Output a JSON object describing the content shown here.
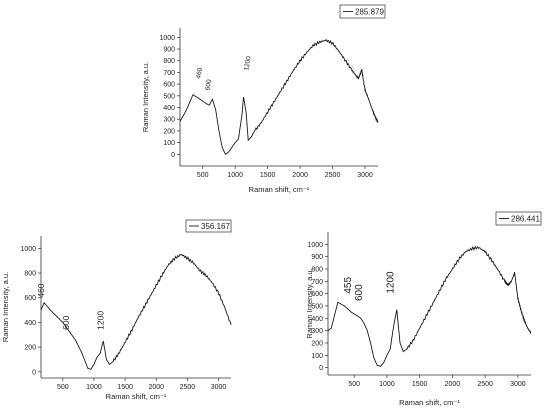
{
  "colors": {
    "line": "#1a1a1a",
    "axis": "#333333",
    "background": "#ffffff"
  },
  "chart_data": [
    {
      "type": "line",
      "xlabel": "Raman shift, cm⁻¹",
      "ylabel": "Raman Intensity, a.u.",
      "xlim": [
        150,
        3200
      ],
      "ylim": [
        -100,
        1080
      ],
      "xticks": [
        500,
        1000,
        1500,
        2000,
        2500,
        3000
      ],
      "yticks": [
        0,
        100,
        200,
        300,
        400,
        500,
        600,
        700,
        800,
        900,
        1000
      ],
      "legend": "285.879",
      "legend_position": "top-right",
      "grid": false,
      "annotations": [
        {
          "text": "460",
          "x": 460,
          "y": 560
        },
        {
          "text": "600",
          "x": 600,
          "y": 460
        },
        {
          "text": "1200",
          "x": 1200,
          "y": 560
        }
      ],
      "x": [
        150,
        250,
        350,
        460,
        550,
        600,
        650,
        700,
        750,
        800,
        850,
        900,
        950,
        1000,
        1050,
        1100,
        1130,
        1170,
        1200,
        1250,
        1300,
        1400,
        1500,
        1600,
        1700,
        1800,
        1900,
        2000,
        2100,
        2200,
        2300,
        2400,
        2500,
        2600,
        2700,
        2800,
        2850,
        2900,
        2950,
        3000,
        3050,
        3100,
        3150,
        3200
      ],
      "y": [
        280,
        380,
        510,
        470,
        435,
        420,
        470,
        380,
        200,
        60,
        0,
        20,
        60,
        100,
        130,
        320,
        490,
        350,
        120,
        150,
        200,
        270,
        360,
        450,
        540,
        630,
        720,
        800,
        870,
        930,
        960,
        975,
        950,
        880,
        800,
        720,
        680,
        650,
        720,
        550,
        480,
        400,
        330,
        270
      ]
    },
    {
      "type": "line",
      "xlabel": "Raman shift, cm⁻¹",
      "ylabel": "Raman Intensity, a.u.",
      "xlim": [
        150,
        3200
      ],
      "ylim": [
        -50,
        1100
      ],
      "xticks": [
        500,
        1000,
        1500,
        2000,
        2500,
        3000
      ],
      "yticks": [
        0,
        200,
        400,
        600,
        800,
        1000
      ],
      "legend": "356.167",
      "legend_position": "top-right",
      "grid": false,
      "annotations": [
        {
          "text": "460",
          "x": 200,
          "y": 600
        },
        {
          "text": "600",
          "x": 600,
          "y": 340
        },
        {
          "text": "1200",
          "x": 1150,
          "y": 340
        }
      ],
      "x": [
        150,
        200,
        300,
        400,
        500,
        600,
        700,
        800,
        900,
        950,
        1000,
        1050,
        1100,
        1150,
        1200,
        1250,
        1300,
        1400,
        1500,
        1600,
        1700,
        1800,
        1900,
        2000,
        2100,
        2200,
        2300,
        2400,
        2500,
        2600,
        2700,
        2800,
        2900,
        3000,
        3100,
        3200
      ],
      "y": [
        500,
        560,
        500,
        450,
        400,
        330,
        260,
        160,
        30,
        20,
        60,
        120,
        150,
        250,
        100,
        60,
        80,
        150,
        240,
        330,
        430,
        520,
        610,
        700,
        790,
        870,
        920,
        950,
        920,
        880,
        820,
        780,
        720,
        640,
        520,
        380
      ]
    },
    {
      "type": "line",
      "xlabel": "Raman shift, cm⁻¹",
      "ylabel": "Raman Intensity, a.u.",
      "xlim": [
        100,
        3200
      ],
      "ylim": [
        -60,
        1100
      ],
      "xticks": [
        500,
        1000,
        1500,
        2000,
        2500,
        3000
      ],
      "yticks": [
        0,
        100,
        200,
        300,
        400,
        500,
        600,
        700,
        800,
        900,
        1000
      ],
      "legend": "286.441",
      "legend_position": "top-right",
      "grid": false,
      "annotations": [
        {
          "text": "455",
          "x": 455,
          "y": 600
        },
        {
          "text": "600",
          "x": 620,
          "y": 540
        },
        {
          "text": "1200",
          "x": 1100,
          "y": 600
        }
      ],
      "x": [
        100,
        150,
        250,
        350,
        455,
        550,
        600,
        650,
        700,
        750,
        800,
        850,
        900,
        950,
        1000,
        1050,
        1100,
        1150,
        1200,
        1250,
        1300,
        1400,
        1500,
        1600,
        1700,
        1800,
        1900,
        2000,
        2100,
        2200,
        2300,
        2400,
        2500,
        2600,
        2700,
        2800,
        2850,
        2900,
        2950,
        3000,
        3050,
        3100,
        3150,
        3200
      ],
      "y": [
        300,
        320,
        530,
        500,
        450,
        420,
        400,
        360,
        300,
        200,
        80,
        20,
        10,
        40,
        100,
        150,
        330,
        470,
        200,
        130,
        150,
        220,
        320,
        420,
        520,
        620,
        720,
        800,
        880,
        940,
        965,
        975,
        940,
        870,
        790,
        700,
        670,
        700,
        770,
        560,
        460,
        380,
        320,
        280
      ]
    }
  ]
}
